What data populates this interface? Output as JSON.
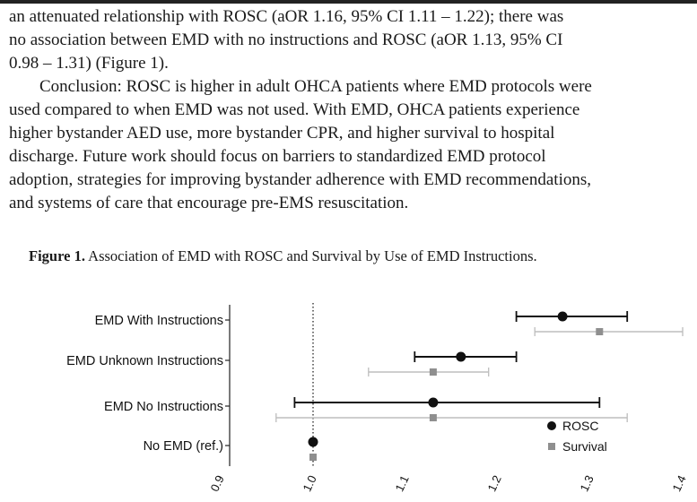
{
  "abstract": {
    "lines": [
      "an attenuated relationship with ROSC (aOR 1.16, 95% CI 1.11 – 1.22); there was",
      "no association between EMD with no instructions and ROSC (aOR 1.13, 95% CI",
      "0.98 – 1.31) (Figure 1).",
      "Conclusion: ROSC is higher in adult OHCA patients where EMD protocols were",
      "used compared to when EMD was not used. With EMD, OHCA patients experience",
      "higher bystander AED use, more bystander CPR, and higher survival to hospital",
      "discharge. Future work should focus on barriers to standardized EMD protocol",
      "adoption, strategies for improving bystander adherence with EMD recommendations,",
      "and systems of care that encourage pre-EMS resuscitation."
    ]
  },
  "figure": {
    "label": "Figure 1.",
    "caption": "Association of EMD with ROSC and Survival by Use of EMD Instructions."
  },
  "colors": {
    "rosc": "#111111",
    "survival": "#8f8f8f",
    "survival_ci": "#bdbdbd",
    "reference_line": "#333333"
  },
  "chart_data": {
    "type": "scatter",
    "categories": [
      "EMD With Instructions",
      "EMD Unknown Instructions",
      "EMD No Instructions",
      "No EMD (ref.)"
    ],
    "series": [
      {
        "name": "ROSC",
        "marker": "circle",
        "estimates": [
          1.27,
          1.16,
          1.13,
          1.0
        ],
        "ci_low": [
          1.22,
          1.11,
          0.98,
          null
        ],
        "ci_high": [
          1.34,
          1.22,
          1.31,
          null
        ]
      },
      {
        "name": "Survival",
        "marker": "square",
        "estimates": [
          1.31,
          1.13,
          1.13,
          1.0
        ],
        "ci_low": [
          1.24,
          1.06,
          0.96,
          null
        ],
        "ci_high": [
          1.4,
          1.19,
          1.34,
          null
        ]
      }
    ],
    "x_ticks": [
      "0.9",
      "1.0",
      "1.1",
      "1.2",
      "1.3",
      "1.4"
    ],
    "x_tick_values": [
      0.9,
      1.0,
      1.1,
      1.2,
      1.3,
      1.4
    ],
    "xlim": [
      0.87,
      1.43
    ],
    "reference_value": 1.0,
    "xlabel": "",
    "legend": {
      "entries": [
        "ROSC",
        "Survival"
      ],
      "placement": "right"
    },
    "grid": false
  }
}
